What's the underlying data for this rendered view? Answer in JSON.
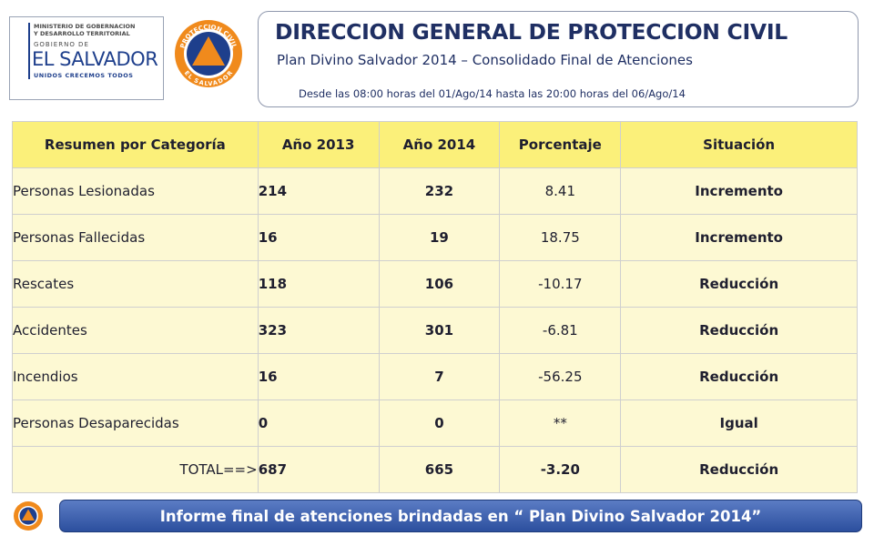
{
  "gov_logo": {
    "line1": "MINISTERIO DE GOBERNACION",
    "line2": "Y DESARROLLO TERRITORIAL",
    "gobierno": "GOBIERNO DE",
    "name": "EL SALVADOR",
    "slogan": "UNIDOS CRECEMOS TODOS"
  },
  "pc_logo": {
    "top_text": "PROTECCION CIVIL",
    "bottom_text": "EL SALVADOR"
  },
  "header": {
    "title": "DIRECCION GENERAL DE PROTECCION CIVIL",
    "subtitle": "Plan Divino Salvador  2014 – Consolidado Final de Atenciones",
    "dates": "Desde las 08:00 horas del 01/Ago/14 hasta las 20:00 horas del 06/Ago/14"
  },
  "table": {
    "headers": [
      "Resumen por Categoría",
      "Año 2013",
      "Año 2014",
      "Porcentaje",
      "Situación"
    ],
    "rows": [
      {
        "categoria": "Personas Lesionadas",
        "y2013": "214",
        "y2014": "232",
        "pct": "8.41",
        "situacion": "Incremento"
      },
      {
        "categoria": "Personas Fallecidas",
        "y2013": "16",
        "y2014": "19",
        "pct": "18.75",
        "situacion": "Incremento"
      },
      {
        "categoria": "Rescates",
        "y2013": "118",
        "y2014": "106",
        "pct": "-10.17",
        "situacion": "Reducción"
      },
      {
        "categoria": "Accidentes",
        "y2013": "323",
        "y2014": "301",
        "pct": "-6.81",
        "situacion": "Reducción"
      },
      {
        "categoria": "Incendios",
        "y2013": "16",
        "y2014": "7",
        "pct": "-56.25",
        "situacion": "Reducción"
      },
      {
        "categoria": "Personas Desaparecidas",
        "y2013": "0",
        "y2014": "0",
        "pct": "**",
        "situacion": "Igual"
      }
    ],
    "total": {
      "label": "TOTAL==>",
      "y2013": "687",
      "y2014": "665",
      "pct": "-3.20",
      "situacion": "Reducción"
    }
  },
  "footer": {
    "text": "Informe final de atenciones brindadas en “ Plan Divino Salvador 2014”"
  },
  "colors": {
    "header_fill": "#fbf07a",
    "cell_fill": "#fdf9d3",
    "title": "#1f2f63",
    "footer_bar": "#3a5eaf",
    "logo_orange": "#f08a1c",
    "logo_blue": "#1e3f8c"
  }
}
